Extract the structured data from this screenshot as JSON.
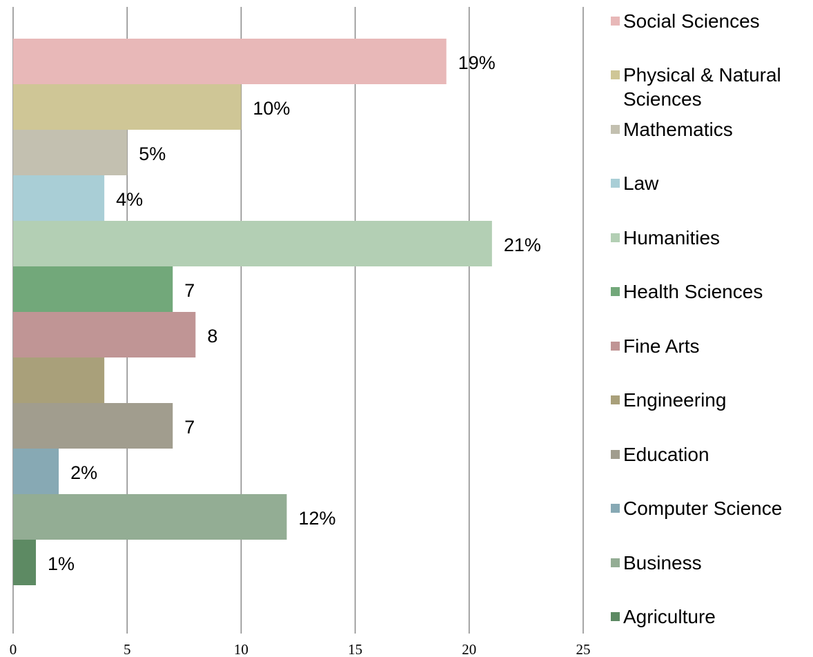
{
  "chart_data": {
    "type": "hbar",
    "categories": [
      "Social Sciences",
      "Physical & Natural Sciences",
      "Mathematics",
      "Law",
      "Humanities",
      "Health Sciences",
      "Fine Arts",
      "Engineering",
      "Education",
      "Computer Science",
      "Business",
      "Agriculture"
    ],
    "values": [
      19,
      10,
      5,
      4,
      21,
      7,
      8,
      4,
      7,
      2,
      12,
      1
    ],
    "value_labels": [
      "19%",
      "10%",
      "5%",
      "4%",
      "21%",
      "7",
      "8",
      null,
      "7",
      "2%",
      "12%",
      "1%"
    ],
    "colors": [
      "#e8b8b8",
      "#cfc696",
      "#c3c0b0",
      "#a9ced6",
      "#b3cfb4",
      "#72a87a",
      "#c09595",
      "#a9a07a",
      "#a19d8e",
      "#87a9b4",
      "#93ad94",
      "#5d8a63"
    ],
    "xlim": [
      0,
      25
    ],
    "xticks": [
      0,
      5,
      10,
      15,
      20,
      25
    ],
    "grid": true,
    "legend": "right"
  }
}
